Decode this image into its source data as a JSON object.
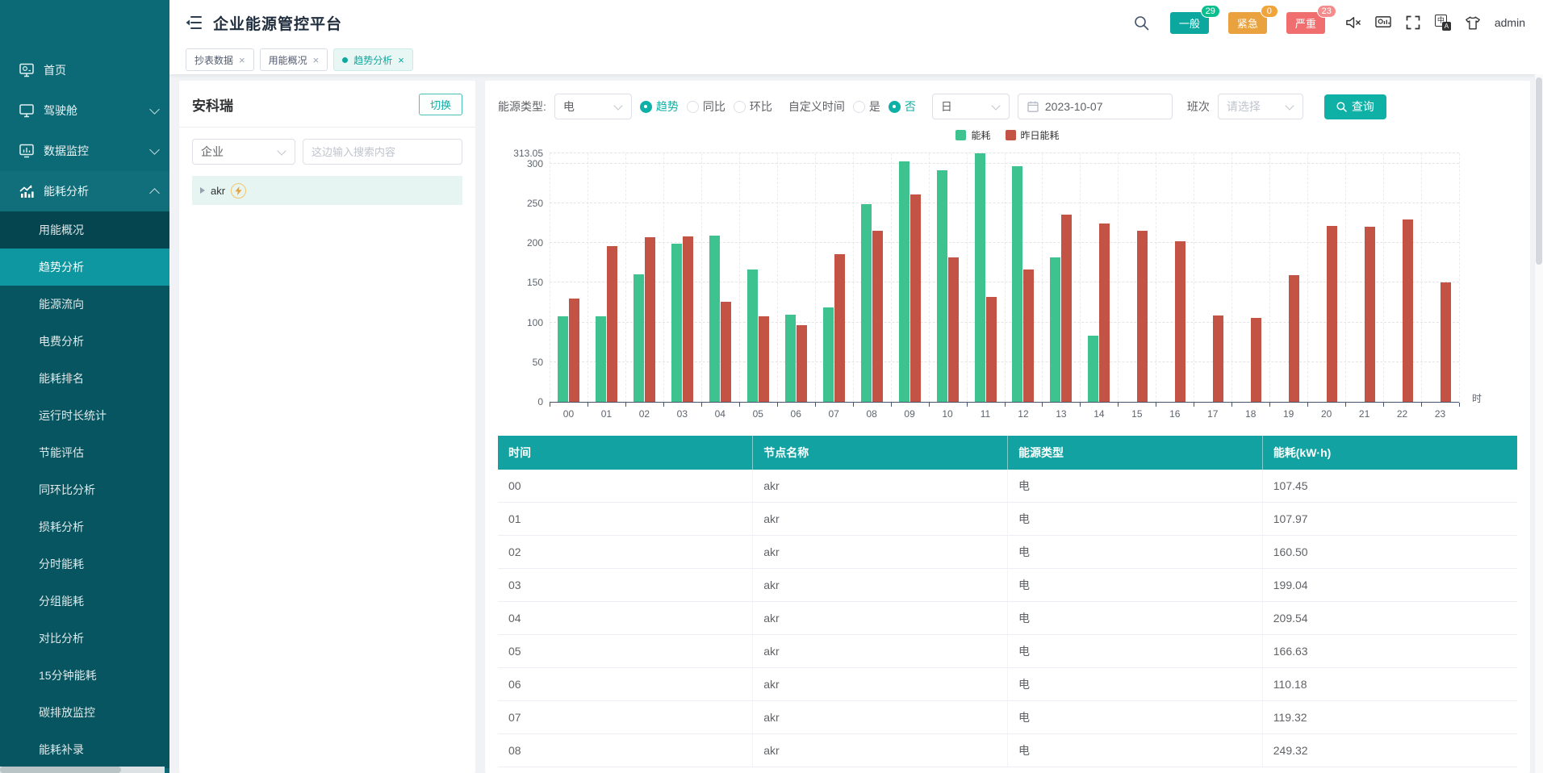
{
  "app": {
    "title": "企业能源管控平台",
    "user": "admin"
  },
  "glyphs": {
    "close": "×"
  },
  "icons": [
    "menu-collapse-icon",
    "home-icon",
    "dashboard-monitor-icon",
    "data-monitor-icon",
    "trend-chart-icon",
    "search-icon",
    "mute-speaker-icon",
    "screen-monitor-icon",
    "fullscreen-icon",
    "translate-icon",
    "tshirt-icon",
    "calendar-icon",
    "lightning-icon",
    "caret-icon"
  ],
  "header": {
    "badges": [
      {
        "label": "一般",
        "count": "29",
        "bg": "#0ca79e",
        "bubble": "#0abf8e"
      },
      {
        "label": "紧急",
        "count": "0",
        "bg": "#e9a23d",
        "bubble": "#f0a43c"
      },
      {
        "label": "严重",
        "count": "23",
        "bg": "#f16e6e",
        "bubble": "#f58b8b"
      }
    ]
  },
  "tabs": [
    {
      "label": "抄表数据",
      "active": false
    },
    {
      "label": "用能概况",
      "active": false
    },
    {
      "label": "趋势分析",
      "active": true
    }
  ],
  "sidebar": {
    "items": [
      {
        "label": "首页",
        "icon": "home",
        "expandable": false
      },
      {
        "label": "驾驶舱",
        "icon": "monitor",
        "expandable": true
      },
      {
        "label": "数据监控",
        "icon": "data",
        "expandable": true
      },
      {
        "label": "能耗分析",
        "icon": "trend",
        "expandable": true,
        "expanded": true,
        "children": [
          {
            "label": "用能概况",
            "variant": "dark"
          },
          {
            "label": "趋势分析",
            "selected": true
          },
          {
            "label": "能源流向"
          },
          {
            "label": "电费分析"
          },
          {
            "label": "能耗排名"
          },
          {
            "label": "运行时长统计"
          },
          {
            "label": "节能评估"
          },
          {
            "label": "同环比分析"
          },
          {
            "label": "损耗分析"
          },
          {
            "label": "分时能耗"
          },
          {
            "label": "分组能耗"
          },
          {
            "label": "对比分析"
          },
          {
            "label": "15分钟能耗"
          },
          {
            "label": "碳排放监控"
          },
          {
            "label": "能耗补录"
          }
        ]
      }
    ]
  },
  "tree_panel": {
    "title": "安科瑞",
    "switch_label": "切换",
    "type_value": "企业",
    "search_placeholder": "这边输入搜索内容",
    "node_label": "akr"
  },
  "filters": {
    "energy_type_label": "能源类型:",
    "energy_type_value": "电",
    "mode_options": [
      "趋势",
      "同比",
      "环比"
    ],
    "mode_selected": "趋势",
    "custom_time_label": "自定义时间",
    "custom_options": [
      "是",
      "否"
    ],
    "custom_selected": "否",
    "period_value": "日",
    "date_value": "2023-10-07",
    "shift_label": "班次",
    "shift_placeholder": "请选择",
    "query_label": "查询"
  },
  "chart_data": {
    "type": "bar",
    "x": [
      "00",
      "01",
      "02",
      "03",
      "04",
      "05",
      "06",
      "07",
      "08",
      "09",
      "10",
      "11",
      "12",
      "13",
      "14",
      "15",
      "16",
      "17",
      "18",
      "19",
      "20",
      "21",
      "22",
      "23"
    ],
    "x_unit": "时",
    "ylim": [
      0,
      313.05
    ],
    "yticks": [
      {
        "v": 0,
        "label": "0"
      },
      {
        "v": 50,
        "label": "50"
      },
      {
        "v": 100,
        "label": "100"
      },
      {
        "v": 150,
        "label": "150"
      },
      {
        "v": 200,
        "label": "200"
      },
      {
        "v": 250,
        "label": "250"
      },
      {
        "v": 300,
        "label": "300"
      },
      {
        "v": 313.05,
        "label": "313.05"
      }
    ],
    "grid": true,
    "legend_position": "top",
    "series": [
      {
        "name": "能耗",
        "color": "#3ec290",
        "values": [
          107.45,
          107.97,
          160.5,
          199.04,
          209.54,
          166.63,
          110.18,
          119.32,
          249.32,
          303,
          292,
          313.05,
          297,
          182,
          83,
          null,
          null,
          null,
          null,
          null,
          null,
          null,
          null,
          null
        ]
      },
      {
        "name": "昨日能耗",
        "color": "#c25345",
        "values": [
          130,
          196,
          207,
          208,
          126,
          108,
          97,
          186,
          216,
          261,
          182,
          132,
          167,
          236,
          225,
          216,
          202,
          109,
          106,
          160,
          222,
          221,
          230,
          150
        ]
      }
    ]
  },
  "table": {
    "columns": [
      "时间",
      "节点名称",
      "能源类型",
      "能耗(kW·h)"
    ],
    "rows": [
      [
        "00",
        "akr",
        "电",
        "107.45"
      ],
      [
        "01",
        "akr",
        "电",
        "107.97"
      ],
      [
        "02",
        "akr",
        "电",
        "160.50"
      ],
      [
        "03",
        "akr",
        "电",
        "199.04"
      ],
      [
        "04",
        "akr",
        "电",
        "209.54"
      ],
      [
        "05",
        "akr",
        "电",
        "166.63"
      ],
      [
        "06",
        "akr",
        "电",
        "110.18"
      ],
      [
        "07",
        "akr",
        "电",
        "119.32"
      ],
      [
        "08",
        "akr",
        "电",
        "249.32"
      ]
    ]
  }
}
